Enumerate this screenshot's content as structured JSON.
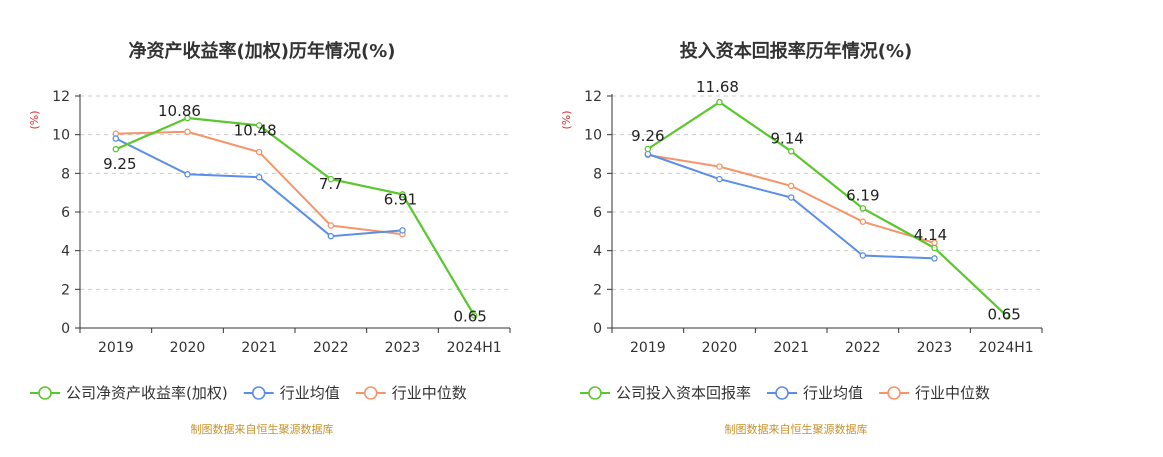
{
  "colors": {
    "company": "#5bc72e",
    "industry_avg": "#5b8ee6",
    "industry_median": "#f5956b",
    "grid": "#cccccc",
    "axis": "#333333"
  },
  "chart_data": [
    {
      "type": "line",
      "title": "净资产收益率(加权)历年情况(%)",
      "ylabel": "(%)",
      "xlabel": "",
      "ylim": [
        0,
        12
      ],
      "yticks": [
        0,
        2,
        4,
        6,
        8,
        10,
        12
      ],
      "categories": [
        "2019",
        "2020",
        "2021",
        "2022",
        "2023",
        "2024H1"
      ],
      "series": [
        {
          "key": "company",
          "name": "公司净资产收益率(加权)",
          "values": [
            9.25,
            10.86,
            10.48,
            7.7,
            6.91,
            0.65
          ],
          "labels": [
            "9.25",
            "10.86",
            "10.48",
            "7.7",
            "6.91",
            "0.65"
          ]
        },
        {
          "key": "industry_avg",
          "name": "行业均值",
          "values": [
            9.8,
            7.95,
            7.8,
            4.75,
            5.05,
            null
          ]
        },
        {
          "key": "industry_median",
          "name": "行业中位数",
          "values": [
            10.05,
            10.15,
            9.1,
            5.3,
            4.85,
            null
          ]
        }
      ],
      "source": "制图数据来自恒生聚源数据库"
    },
    {
      "type": "line",
      "title": "投入资本回报率历年情况(%)",
      "ylabel": "(%)",
      "xlabel": "",
      "ylim": [
        0,
        12
      ],
      "yticks": [
        0,
        2,
        4,
        6,
        8,
        10,
        12
      ],
      "categories": [
        "2019",
        "2020",
        "2021",
        "2022",
        "2023",
        "2024H1"
      ],
      "series": [
        {
          "key": "company",
          "name": "公司投入资本回报率",
          "values": [
            9.26,
            11.68,
            9.14,
            6.19,
            4.14,
            0.65
          ],
          "labels": [
            "9.26",
            "11.68",
            "9.14",
            "6.19",
            "4.14",
            "0.65"
          ]
        },
        {
          "key": "industry_avg",
          "name": "行业均值",
          "values": [
            9.0,
            7.7,
            6.75,
            3.75,
            3.6,
            null
          ]
        },
        {
          "key": "industry_median",
          "name": "行业中位数",
          "values": [
            8.95,
            8.35,
            7.35,
            5.5,
            4.4,
            null
          ]
        }
      ],
      "source": "制图数据来自恒生聚源数据库"
    }
  ]
}
